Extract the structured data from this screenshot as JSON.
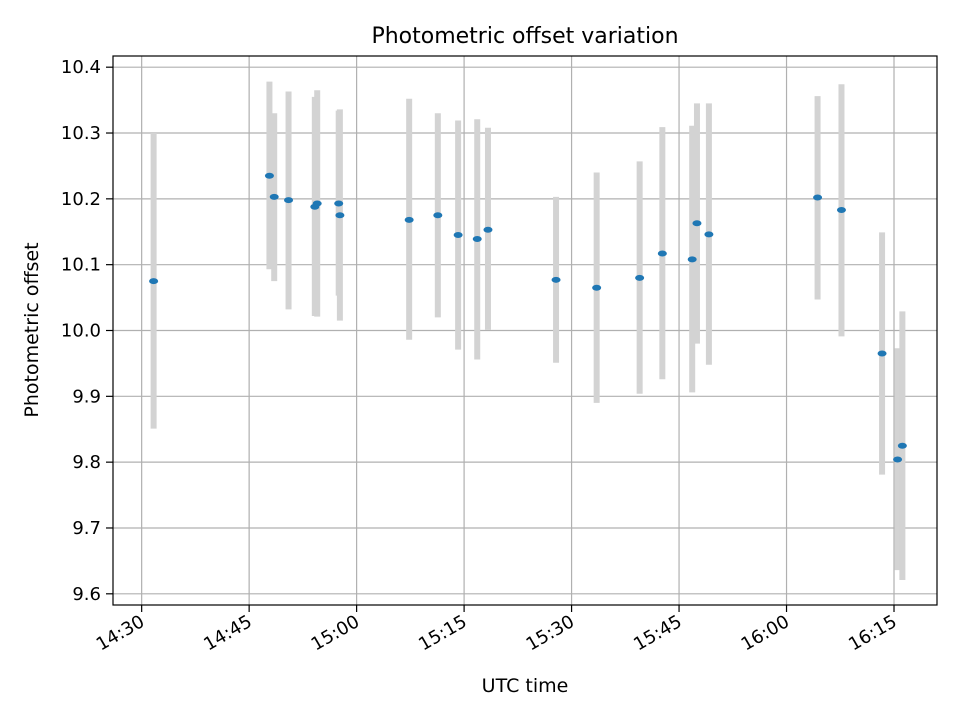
{
  "chart_data": {
    "type": "scatter",
    "title": "Photometric offset variation",
    "xlabel": "UTC time",
    "ylabel": "Photometric offset",
    "xlim": [
      "14:26",
      "16:21"
    ],
    "ylim": [
      9.583,
      10.417
    ],
    "x_ticks": [
      "14:30",
      "14:45",
      "15:00",
      "15:15",
      "15:30",
      "15:45",
      "16:00",
      "16:15"
    ],
    "y_ticks": [
      "9.6",
      "9.7",
      "9.8",
      "9.9",
      "10.0",
      "10.1",
      "10.2",
      "10.3",
      "10.4"
    ],
    "grid": true,
    "point_color": "#1f77b4",
    "errorbar_color": "#d3d3d3",
    "points": [
      {
        "time": "14:31:40",
        "y": 10.075,
        "low": 9.851,
        "high": 10.3
      },
      {
        "time": "14:47:50",
        "y": 10.235,
        "low": 10.093,
        "high": 10.378
      },
      {
        "time": "14:48:30",
        "y": 10.203,
        "low": 10.075,
        "high": 10.33
      },
      {
        "time": "14:50:30",
        "y": 10.198,
        "low": 10.032,
        "high": 10.363
      },
      {
        "time": "14:54:10",
        "y": 10.188,
        "low": 10.022,
        "high": 10.355
      },
      {
        "time": "14:54:30",
        "y": 10.193,
        "low": 10.021,
        "high": 10.365
      },
      {
        "time": "14:57:30",
        "y": 10.193,
        "low": 10.053,
        "high": 10.334
      },
      {
        "time": "14:57:40",
        "y": 10.175,
        "low": 10.015,
        "high": 10.336
      },
      {
        "time": "15:07:20",
        "y": 10.168,
        "low": 9.986,
        "high": 10.352
      },
      {
        "time": "15:11:20",
        "y": 10.175,
        "low": 10.02,
        "high": 10.33
      },
      {
        "time": "15:14:10",
        "y": 10.145,
        "low": 9.971,
        "high": 10.319
      },
      {
        "time": "15:16:50",
        "y": 10.139,
        "low": 9.956,
        "high": 10.321
      },
      {
        "time": "15:18:20",
        "y": 10.153,
        "low": 10.001,
        "high": 10.308
      },
      {
        "time": "15:27:50",
        "y": 10.077,
        "low": 9.951,
        "high": 10.203
      },
      {
        "time": "15:33:30",
        "y": 10.065,
        "low": 9.89,
        "high": 10.24
      },
      {
        "time": "15:39:30",
        "y": 10.08,
        "low": 9.904,
        "high": 10.257
      },
      {
        "time": "15:42:40",
        "y": 10.117,
        "low": 9.926,
        "high": 10.309
      },
      {
        "time": "15:46:50",
        "y": 10.108,
        "low": 9.906,
        "high": 10.311
      },
      {
        "time": "15:47:30",
        "y": 10.163,
        "low": 9.98,
        "high": 10.345
      },
      {
        "time": "15:49:10",
        "y": 10.146,
        "low": 9.948,
        "high": 10.345
      },
      {
        "time": "16:04:20",
        "y": 10.202,
        "low": 10.047,
        "high": 10.356
      },
      {
        "time": "16:07:40",
        "y": 10.183,
        "low": 9.991,
        "high": 10.374
      },
      {
        "time": "16:13:20",
        "y": 9.965,
        "low": 9.781,
        "high": 10.149
      },
      {
        "time": "16:15:30",
        "y": 9.804,
        "low": 9.636,
        "high": 9.973
      },
      {
        "time": "16:16:10",
        "y": 9.825,
        "low": 9.621,
        "high": 10.029
      }
    ]
  }
}
